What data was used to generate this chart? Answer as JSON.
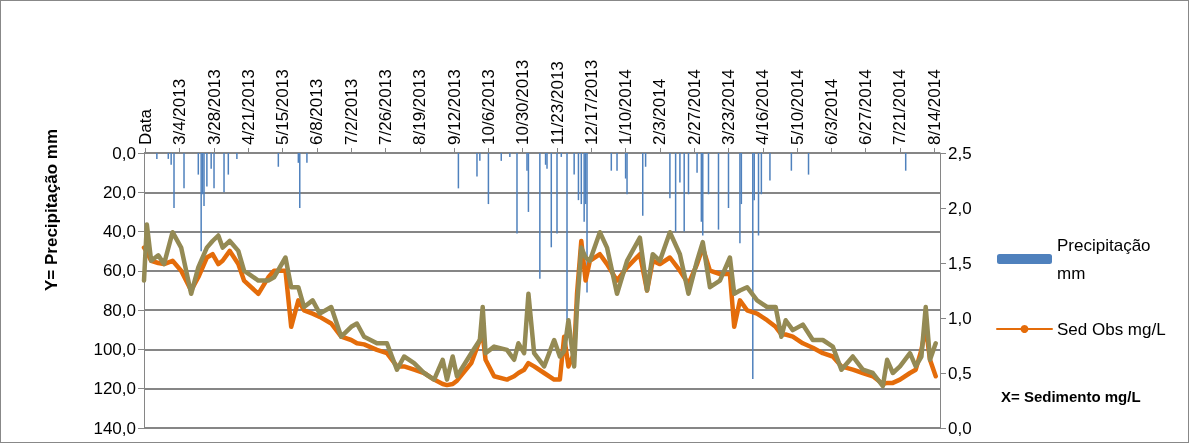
{
  "chart_data": {
    "type": "line",
    "ylabel": "Y= Precipitação mm",
    "y2label": "X= Sedimento mg/L",
    "xlim": [
      "2013-02-07",
      "2014-08-18"
    ],
    "xticks": [
      {
        "value": "2013-02-08",
        "label": "Data"
      },
      {
        "value": "2013-03-04",
        "label": "3/4/2013"
      },
      {
        "value": "2013-03-28",
        "label": "3/28/2013"
      },
      {
        "value": "2013-04-21",
        "label": "4/21/2013"
      },
      {
        "value": "2013-05-15",
        "label": "5/15/2013"
      },
      {
        "value": "2013-06-08",
        "label": "6/8/2013"
      },
      {
        "value": "2013-07-02",
        "label": "7/2/2013"
      },
      {
        "value": "2013-07-26",
        "label": "7/26/2013"
      },
      {
        "value": "2013-08-19",
        "label": "8/19/2013"
      },
      {
        "value": "2013-09-12",
        "label": "9/12/2013"
      },
      {
        "value": "2013-10-06",
        "label": "10/6/2013"
      },
      {
        "value": "2013-10-30",
        "label": "10/30/2013"
      },
      {
        "value": "2013-11-23",
        "label": "11/23/2013"
      },
      {
        "value": "2013-12-17",
        "label": "12/17/2013"
      },
      {
        "value": "2014-01-10",
        "label": "1/10/2014"
      },
      {
        "value": "2014-02-03",
        "label": "2/3/2014"
      },
      {
        "value": "2014-02-27",
        "label": "2/27/2014"
      },
      {
        "value": "2014-03-23",
        "label": "3/23/2014"
      },
      {
        "value": "2014-04-16",
        "label": "4/16/2014"
      },
      {
        "value": "2014-05-10",
        "label": "5/10/2014"
      },
      {
        "value": "2014-06-03",
        "label": "6/3/2014"
      },
      {
        "value": "2014-06-27",
        "label": "6/27/2014"
      },
      {
        "value": "2014-07-21",
        "label": "7/21/2014"
      },
      {
        "value": "2014-08-14",
        "label": "8/14/2014"
      }
    ],
    "ylim": [
      140,
      0
    ],
    "yticks": [
      {
        "value": 0,
        "label": "0,0"
      },
      {
        "value": 20,
        "label": "20,0"
      },
      {
        "value": 40,
        "label": "40,0"
      },
      {
        "value": 60,
        "label": "60,0"
      },
      {
        "value": 80,
        "label": "80,0"
      },
      {
        "value": 100,
        "label": "100,0"
      },
      {
        "value": 120,
        "label": "120,0"
      },
      {
        "value": 140,
        "label": "140,0"
      }
    ],
    "y2lim": [
      0,
      2.5
    ],
    "y2ticks": [
      {
        "value": 0,
        "label": "0,0"
      },
      {
        "value": 0.5,
        "label": "0,5"
      },
      {
        "value": 1,
        "label": "1,0"
      },
      {
        "value": 1.5,
        "label": "1,5"
      },
      {
        "value": 2,
        "label": "2,0"
      },
      {
        "value": 2.5,
        "label": "2,5"
      }
    ],
    "grid": "y",
    "legend": "right",
    "marker": "none",
    "series": [
      {
        "name": "Precipitação mm",
        "type": "bar",
        "color": "#4f81bd",
        "axis": "y",
        "x": [
          "2013-02-16",
          "2013-02-24",
          "2013-02-26",
          "2013-02-28",
          "2013-03-07",
          "2013-03-17",
          "2013-03-19",
          "2013-03-20",
          "2013-03-21",
          "2013-03-23",
          "2013-03-26",
          "2013-03-28",
          "2013-04-04",
          "2013-04-07",
          "2013-04-13",
          "2013-05-12",
          "2013-05-26",
          "2013-05-27",
          "2013-06-01",
          "2013-09-15",
          "2013-09-28",
          "2013-09-30",
          "2013-10-06",
          "2013-10-15",
          "2013-10-21",
          "2013-10-26",
          "2013-11-02",
          "2013-11-03",
          "2013-11-11",
          "2013-11-15",
          "2013-11-16",
          "2013-11-19",
          "2013-11-23",
          "2013-11-26",
          "2013-11-30",
          "2013-12-05",
          "2013-12-08",
          "2013-12-10",
          "2013-12-12",
          "2013-12-13",
          "2013-12-14",
          "2013-12-31",
          "2014-01-04",
          "2014-01-10",
          "2014-01-11",
          "2014-01-22",
          "2014-01-24",
          "2014-02-10",
          "2014-02-14",
          "2014-02-17",
          "2014-02-20",
          "2014-02-23",
          "2014-03-01",
          "2014-03-04",
          "2014-03-05",
          "2014-03-09",
          "2014-03-16",
          "2014-03-23",
          "2014-03-31",
          "2014-04-01",
          "2014-04-09",
          "2014-04-10",
          "2014-04-13",
          "2014-04-15",
          "2014-04-21",
          "2014-05-06",
          "2014-05-18",
          "2014-07-25"
        ],
        "values": [
          3,
          3,
          6,
          28,
          18,
          11,
          50,
          21,
          27,
          17,
          8,
          18,
          20,
          11,
          3,
          7,
          5,
          28,
          5,
          18,
          12,
          4,
          26,
          4,
          2,
          41,
          9,
          30,
          64,
          6,
          8,
          48,
          41,
          2,
          85,
          11,
          24,
          26,
          35,
          26,
          71,
          9,
          9,
          13,
          21,
          32,
          7,
          23,
          40,
          15,
          40,
          21,
          10,
          35,
          42,
          21,
          39,
          28,
          46,
          26,
          115,
          24,
          42,
          21,
          14,
          9,
          11,
          9
        ]
      },
      {
        "name": "Sed Obs mg/L",
        "color": "#e46c0a",
        "axis": "y2",
        "x": [
          "2013-02-07",
          "2013-02-09",
          "2013-02-12",
          "2013-02-17",
          "2013-02-21",
          "2013-02-27",
          "2013-03-05",
          "2013-03-12",
          "2013-03-17",
          "2013-03-23",
          "2013-03-27",
          "2013-03-31",
          "2013-04-03",
          "2013-04-08",
          "2013-04-14",
          "2013-04-18",
          "2013-04-28",
          "2013-05-05",
          "2013-05-09",
          "2013-05-17",
          "2013-05-21",
          "2013-05-26",
          "2013-05-30",
          "2013-06-05",
          "2013-06-10",
          "2013-06-18",
          "2013-06-25",
          "2013-07-02",
          "2013-07-06",
          "2013-07-11",
          "2013-07-20",
          "2013-07-27",
          "2013-08-03",
          "2013-08-08",
          "2013-08-15",
          "2013-08-22",
          "2013-08-29",
          "2013-09-04",
          "2013-09-07",
          "2013-09-11",
          "2013-09-14",
          "2013-09-24",
          "2013-09-30",
          "2013-10-02",
          "2013-10-04",
          "2013-10-10",
          "2013-10-19",
          "2013-10-24",
          "2013-10-27",
          "2013-10-31",
          "2013-11-03",
          "2013-11-07",
          "2013-11-14",
          "2013-11-21",
          "2013-11-25",
          "2013-11-28",
          "2013-12-01",
          "2013-12-05",
          "2013-12-07",
          "2013-12-10",
          "2013-12-13",
          "2013-12-16",
          "2013-12-23",
          "2013-12-28",
          "2014-01-04",
          "2014-01-11",
          "2014-01-20",
          "2014-01-25",
          "2014-01-29",
          "2014-02-03",
          "2014-02-10",
          "2014-02-17",
          "2014-02-23",
          "2014-03-01",
          "2014-03-05",
          "2014-03-10",
          "2014-03-17",
          "2014-03-24",
          "2014-03-27",
          "2014-03-31",
          "2014-04-05",
          "2014-04-12",
          "2014-04-19",
          "2014-04-25",
          "2014-04-29",
          "2014-05-02",
          "2014-05-07",
          "2014-05-14",
          "2014-05-21",
          "2014-05-28",
          "2014-06-04",
          "2014-06-10",
          "2014-06-18",
          "2014-06-25",
          "2014-07-02",
          "2014-07-09",
          "2014-07-12",
          "2014-07-16",
          "2014-07-21",
          "2014-07-28",
          "2014-08-01",
          "2014-08-05",
          "2014-08-08",
          "2014-08-11",
          "2014-08-15"
        ],
        "values": [
          1.64,
          1.6,
          1.52,
          1.5,
          1.49,
          1.52,
          1.43,
          1.25,
          1.37,
          1.55,
          1.58,
          1.49,
          1.52,
          1.61,
          1.49,
          1.34,
          1.22,
          1.37,
          1.43,
          1.43,
          0.92,
          1.16,
          1.07,
          1.04,
          1.01,
          0.95,
          0.83,
          0.8,
          0.77,
          0.76,
          0.71,
          0.68,
          0.56,
          0.56,
          0.53,
          0.5,
          0.44,
          0.4,
          0.39,
          0.4,
          0.43,
          0.59,
          0.8,
          0.85,
          0.62,
          0.47,
          0.44,
          0.47,
          0.5,
          0.53,
          0.59,
          0.56,
          0.5,
          0.44,
          0.44,
          0.83,
          0.56,
          0.68,
          1.22,
          1.7,
          1.34,
          1.52,
          1.58,
          1.49,
          1.34,
          1.46,
          1.58,
          1.25,
          1.52,
          1.49,
          1.55,
          1.43,
          1.31,
          1.49,
          1.64,
          1.43,
          1.4,
          1.4,
          0.92,
          1.16,
          1.07,
          1.04,
          0.98,
          0.92,
          0.85,
          0.85,
          0.83,
          0.77,
          0.73,
          0.68,
          0.65,
          0.56,
          0.53,
          0.5,
          0.47,
          0.4,
          0.41,
          0.41,
          0.44,
          0.5,
          0.53,
          0.71,
          0.92,
          0.62,
          0.47
        ]
      },
      {
        "color": "#948a54",
        "axis": "y2",
        "x": [
          "2013-02-07",
          "2013-02-09",
          "2013-02-12",
          "2013-02-17",
          "2013-02-21",
          "2013-02-27",
          "2013-03-05",
          "2013-03-12",
          "2013-03-17",
          "2013-03-23",
          "2013-03-27",
          "2013-03-31",
          "2013-04-03",
          "2013-04-08",
          "2013-04-14",
          "2013-04-18",
          "2013-04-28",
          "2013-05-05",
          "2013-05-09",
          "2013-05-17",
          "2013-05-21",
          "2013-05-26",
          "2013-05-30",
          "2013-06-05",
          "2013-06-10",
          "2013-06-18",
          "2013-06-25",
          "2013-07-02",
          "2013-07-06",
          "2013-07-11",
          "2013-07-20",
          "2013-07-27",
          "2013-08-03",
          "2013-08-08",
          "2013-08-15",
          "2013-08-22",
          "2013-08-29",
          "2013-09-04",
          "2013-09-07",
          "2013-09-11",
          "2013-09-14",
          "2013-09-24",
          "2013-09-30",
          "2013-10-02",
          "2013-10-04",
          "2013-10-10",
          "2013-10-19",
          "2013-10-24",
          "2013-10-27",
          "2013-10-31",
          "2013-11-03",
          "2013-11-07",
          "2013-11-14",
          "2013-11-21",
          "2013-11-25",
          "2013-11-28",
          "2013-12-01",
          "2013-12-05",
          "2013-12-07",
          "2013-12-10",
          "2013-12-13",
          "2013-12-16",
          "2013-12-23",
          "2013-12-28",
          "2014-01-04",
          "2014-01-11",
          "2014-01-20",
          "2014-01-25",
          "2014-01-29",
          "2014-02-03",
          "2014-02-10",
          "2014-02-17",
          "2014-02-23",
          "2014-03-01",
          "2014-03-05",
          "2014-03-10",
          "2014-03-17",
          "2014-03-24",
          "2014-03-27",
          "2014-03-31",
          "2014-04-05",
          "2014-04-12",
          "2014-04-19",
          "2014-04-25",
          "2014-04-29",
          "2014-05-02",
          "2014-05-07",
          "2014-05-14",
          "2014-05-21",
          "2014-05-28",
          "2014-06-04",
          "2014-06-10",
          "2014-06-18",
          "2014-06-25",
          "2014-07-02",
          "2014-07-09",
          "2014-07-12",
          "2014-07-16",
          "2014-07-21",
          "2014-07-28",
          "2014-08-01",
          "2014-08-05",
          "2014-08-08",
          "2014-08-11",
          "2014-08-15"
        ],
        "values": [
          1.34,
          1.85,
          1.52,
          1.57,
          1.49,
          1.78,
          1.64,
          1.22,
          1.46,
          1.64,
          1.7,
          1.75,
          1.64,
          1.7,
          1.61,
          1.43,
          1.34,
          1.34,
          1.37,
          1.55,
          1.28,
          1.28,
          1.1,
          1.16,
          1.04,
          1.1,
          0.83,
          0.92,
          0.95,
          0.83,
          0.77,
          0.77,
          0.53,
          0.65,
          0.59,
          0.5,
          0.44,
          0.62,
          0.44,
          0.65,
          0.47,
          0.68,
          0.8,
          1.1,
          0.68,
          0.74,
          0.71,
          0.62,
          0.77,
          0.68,
          1.22,
          0.68,
          0.56,
          0.8,
          0.65,
          0.7,
          0.98,
          0.56,
          1.1,
          1.64,
          1.55,
          1.52,
          1.78,
          1.64,
          1.22,
          1.52,
          1.73,
          1.25,
          1.58,
          1.52,
          1.78,
          1.58,
          1.22,
          1.52,
          1.69,
          1.28,
          1.34,
          1.55,
          1.22,
          1.25,
          1.28,
          1.16,
          1.1,
          1.1,
          0.83,
          0.98,
          0.89,
          0.94,
          0.8,
          0.8,
          0.74,
          0.53,
          0.65,
          0.53,
          0.5,
          0.38,
          0.62,
          0.5,
          0.56,
          0.68,
          0.56,
          0.65,
          1.1,
          0.62,
          0.77
        ]
      }
    ]
  }
}
